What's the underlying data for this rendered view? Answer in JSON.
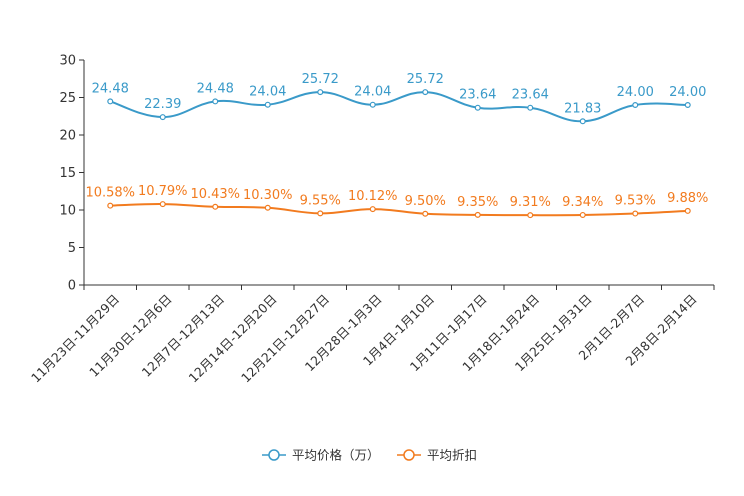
{
  "chart_data": {
    "type": "line",
    "categories": [
      "11月23日-11月29日",
      "11月30日-12月6日",
      "12月7日-12月13日",
      "12月14日-12月20日",
      "12月21日-12月27日",
      "12月28日-1月3日",
      "1月4日-1月10日",
      "1月11日-1月17日",
      "1月18日-1月24日",
      "1月25日-1月31日",
      "2月1日-2月7日",
      "2月8日-2月14日"
    ],
    "ylim": [
      0,
      30
    ],
    "yticks": [
      "0",
      "5",
      "10",
      "15",
      "20",
      "25",
      "30"
    ],
    "series": [
      {
        "name": "平均价格（万）",
        "color": "#3a9ac9",
        "values": [
          24.48,
          22.39,
          24.48,
          24.04,
          25.72,
          24.04,
          25.72,
          23.64,
          23.64,
          21.83,
          24.0,
          24.0
        ],
        "labels": [
          "24.48",
          "22.39",
          "24.48",
          "24.04",
          "25.72",
          "24.04",
          "25.72",
          "23.64",
          "23.64",
          "21.83",
          "24.00",
          "24.00"
        ]
      },
      {
        "name": "平均折扣",
        "color": "#f27b1f",
        "values": [
          10.58,
          10.79,
          10.43,
          10.3,
          9.55,
          10.12,
          9.5,
          9.35,
          9.31,
          9.34,
          9.53,
          9.88
        ],
        "labels": [
          "10.58%",
          "10.79%",
          "10.43%",
          "10.30%",
          "9.55%",
          "10.12%",
          "9.50%",
          "9.35%",
          "9.31%",
          "9.34%",
          "9.53%",
          "9.88%"
        ]
      }
    ]
  }
}
